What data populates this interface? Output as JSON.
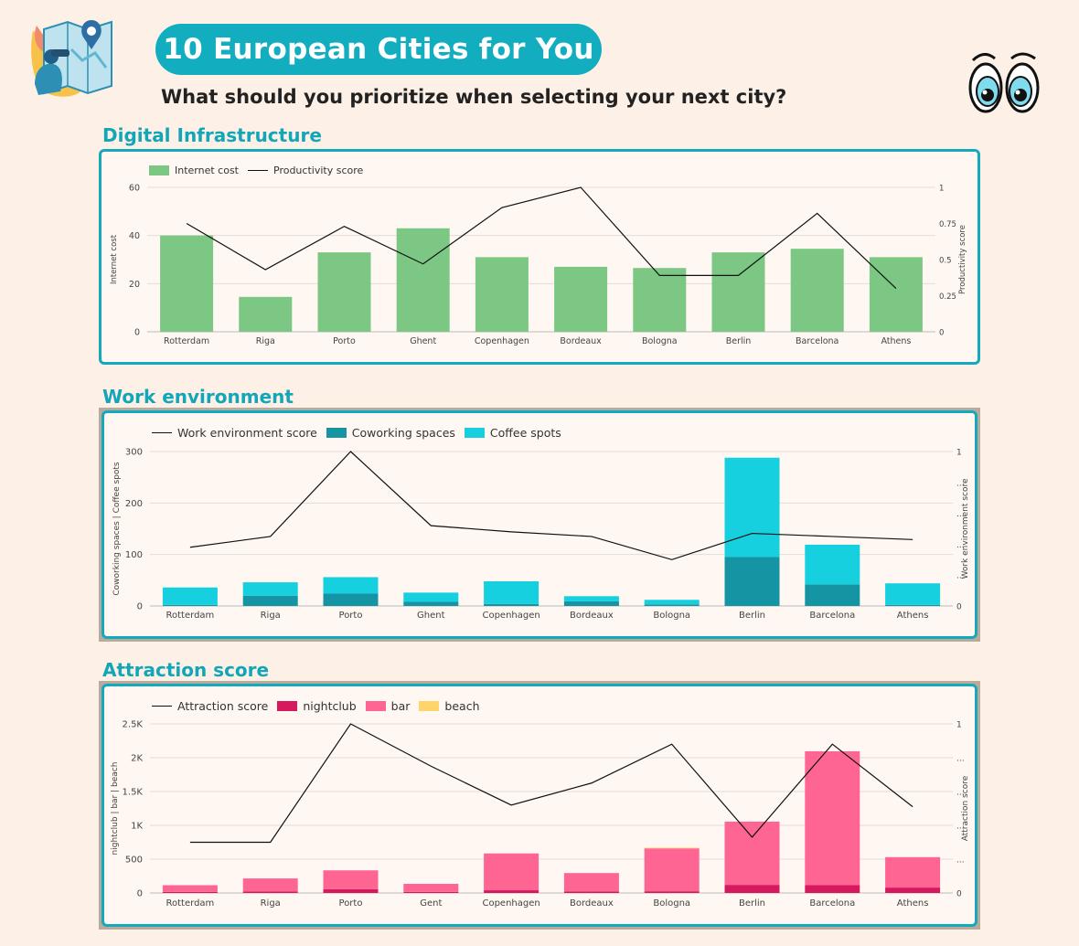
{
  "header": {
    "title": "10 European Cities for You",
    "subtitle": "What should you prioritize when selecting your next city?",
    "colors": {
      "accent": "#12aebf",
      "background": "#fdf1e7"
    },
    "logo_icon": "map-traveler-icon",
    "eyes_icon": "cartoon-eyes-icon"
  },
  "sections": [
    {
      "title": "Digital Infrastructure",
      "legend": [
        "Internet cost",
        "Productivity score"
      ],
      "left_axis_label": "Internet cost",
      "right_axis_label": "Productivity score"
    },
    {
      "title": "Work environment",
      "legend": [
        "Work environment score",
        "Coworking spaces",
        "Coffee spots"
      ],
      "left_axis_label": "Coworking spaces | Coffee spots",
      "right_axis_label": "Work environment score"
    },
    {
      "title": "Attraction score",
      "legend": [
        "Attraction score",
        "nightclub",
        "bar",
        "beach"
      ],
      "left_axis_label": "nightclub | bar | beach",
      "right_axis_label": "Attraction score"
    }
  ],
  "chart_data": [
    {
      "type": "bar",
      "categories": [
        "Rotterdam",
        "Riga",
        "Porto",
        "Ghent",
        "Copenhagen",
        "Bordeaux",
        "Bologna",
        "Berlin",
        "Barcelona",
        "Athens"
      ],
      "series": [
        {
          "name": "Internet cost",
          "kind": "bar",
          "axis": "left",
          "color": "#7dc785",
          "values": [
            40,
            14.5,
            33,
            43,
            31,
            27,
            26.5,
            33,
            34.5,
            31
          ]
        },
        {
          "name": "Productivity score",
          "kind": "line",
          "axis": "right",
          "color": "#111111",
          "values": [
            0.75,
            0.43,
            0.73,
            0.47,
            0.86,
            1.0,
            0.39,
            0.39,
            0.82,
            0.3
          ]
        }
      ],
      "ylim": [
        0,
        60
      ],
      "y_ticks": [
        0,
        20,
        40,
        60
      ],
      "y_tick_labels": [
        "0",
        "20",
        "40",
        "60"
      ],
      "y2lim": [
        0,
        1
      ],
      "y2_ticks": [
        0,
        0.25,
        0.5,
        0.75,
        1
      ],
      "y2_tick_labels": [
        "0",
        "0.25",
        "0.5",
        "0.75",
        "1"
      ],
      "grid": true,
      "legend_position": "top-left"
    },
    {
      "type": "bar",
      "stacked": true,
      "categories": [
        "Rotterdam",
        "Riga",
        "Porto",
        "Ghent",
        "Copenhagen",
        "Bordeaux",
        "Bologna",
        "Berlin",
        "Barcelona",
        "Athens"
      ],
      "series": [
        {
          "name": "Work environment score",
          "kind": "line",
          "axis": "right",
          "color": "#111111",
          "values": [
            0.38,
            0.45,
            1.0,
            0.52,
            0.48,
            0.45,
            0.3,
            0.47,
            0.45,
            0.43
          ]
        },
        {
          "name": "Coworking spaces",
          "kind": "bar",
          "axis": "left",
          "color": "#1595a4",
          "values": [
            2,
            20,
            24,
            8,
            4,
            9,
            3,
            95,
            42,
            2
          ]
        },
        {
          "name": "Coffee spots",
          "kind": "bar",
          "axis": "left",
          "color": "#16d0df",
          "values": [
            34,
            26,
            32,
            18,
            44,
            10,
            9,
            193,
            77,
            42
          ]
        }
      ],
      "ylim": [
        0,
        300
      ],
      "y_ticks": [
        0,
        100,
        200,
        300
      ],
      "y_tick_labels": [
        "0",
        "100",
        "200",
        "300"
      ],
      "y2lim": [
        0,
        1
      ],
      "y2_ticks": [
        0,
        0.2,
        0.4,
        0.6,
        0.8,
        1
      ],
      "y2_tick_labels": [
        "0",
        "...",
        "...",
        "...",
        "...",
        "1"
      ],
      "grid": true,
      "legend_position": "top-left"
    },
    {
      "type": "bar",
      "stacked": true,
      "categories": [
        "Rotterdam",
        "Riga",
        "Porto",
        "Gent",
        "Copenhagen",
        "Bordeaux",
        "Bologna",
        "Berlin",
        "Barcelona",
        "Athens"
      ],
      "series": [
        {
          "name": "Attraction score",
          "kind": "line",
          "axis": "right",
          "color": "#111111",
          "values": [
            0.3,
            0.3,
            1.0,
            0.75,
            0.52,
            0.65,
            0.88,
            0.33,
            0.88,
            0.51
          ]
        },
        {
          "name": "nightclub",
          "kind": "bar",
          "axis": "left",
          "color": "#d6185e",
          "values": [
            15,
            20,
            55,
            15,
            40,
            20,
            25,
            120,
            115,
            80
          ]
        },
        {
          "name": "bar",
          "kind": "bar",
          "axis": "left",
          "color": "#ff6592",
          "values": [
            100,
            195,
            280,
            120,
            545,
            275,
            635,
            935,
            1980,
            450
          ]
        },
        {
          "name": "beach",
          "kind": "bar",
          "axis": "left",
          "color": "#ffd56a",
          "values": [
            0,
            0,
            0,
            0,
            0,
            0,
            10,
            0,
            0,
            0
          ]
        }
      ],
      "ylim": [
        0,
        2500
      ],
      "y_ticks": [
        0,
        500,
        1000,
        1500,
        2000,
        2500
      ],
      "y_tick_labels": [
        "0",
        "500",
        "1K",
        "1.5K",
        "2K",
        "2.5K"
      ],
      "y2lim": [
        0,
        1
      ],
      "y2_ticks": [
        0,
        0.2,
        0.4,
        0.6,
        0.8,
        1
      ],
      "y2_tick_labels": [
        "0",
        "...",
        "...",
        "...",
        "...",
        "1"
      ],
      "grid": true,
      "legend_position": "top-left"
    }
  ]
}
